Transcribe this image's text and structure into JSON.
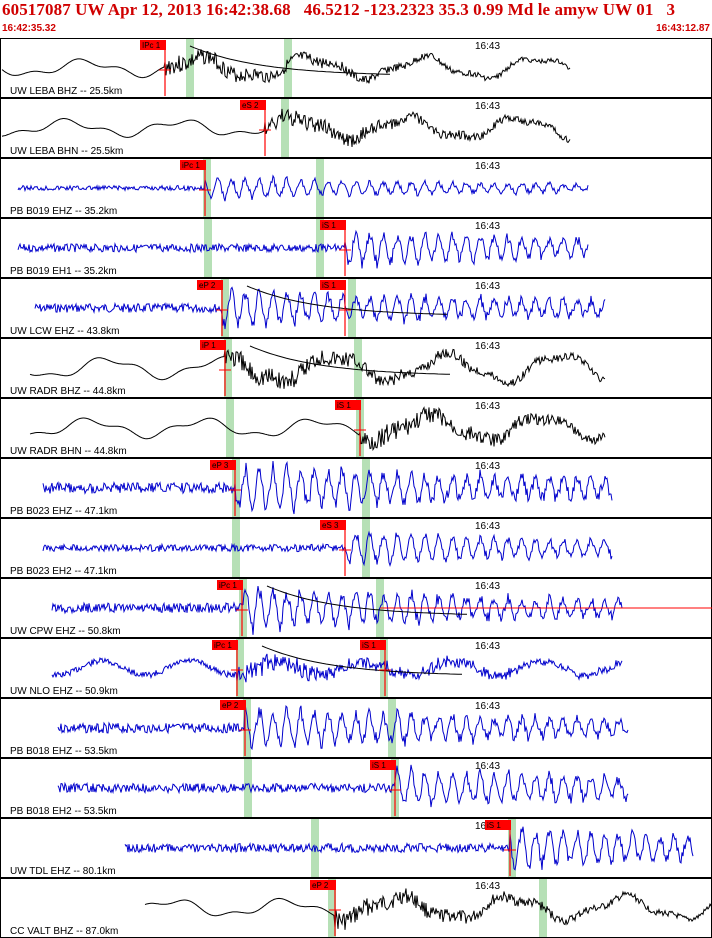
{
  "header": {
    "title": "60517087 UW Apr 12, 2013 16:42:38.68   46.5212 -123.2323 35.3 0.99 Md le amyw UW 01   3",
    "time_start": "16:42:35.32",
    "time_end": "16:43:12.87"
  },
  "colors": {
    "header_text": "#d00000",
    "trace_broadband": "#000000",
    "trace_shortperiod": "#0000cc",
    "pick_marker": "#ff0000",
    "pick_label_bg": "#ff0000",
    "predicted_band": "#b6e0b6",
    "panel_border": "#000000",
    "coda_curve": "#000000"
  },
  "minute_label": "16:43",
  "traces": [
    {
      "label": "UW LEBA BHZ -- 25.5km",
      "color": "black",
      "picks": [
        {
          "label": "IPc 1"
        }
      ]
    },
    {
      "label": "UW LEBA BHN -- 25.5km",
      "color": "black",
      "picks": [
        {
          "label": "eS 2"
        }
      ]
    },
    {
      "label": "PB B019 EHZ -- 35.2km",
      "color": "blue",
      "picks": [
        {
          "label": "iPc 1"
        }
      ]
    },
    {
      "label": "PB B019 EH1 -- 35.2km",
      "color": "blue",
      "picks": [
        {
          "label": "iS 1"
        }
      ]
    },
    {
      "label": "UW LCW EHZ -- 43.8km",
      "color": "blue",
      "picks": [
        {
          "label": "eP 2"
        },
        {
          "label": "iS 1"
        }
      ]
    },
    {
      "label": "UW RADR BHZ -- 44.8km",
      "color": "black",
      "picks": [
        {
          "label": "iP 1"
        }
      ]
    },
    {
      "label": "UW RADR BHN -- 44.8km",
      "color": "black",
      "picks": [
        {
          "label": "iS 1"
        }
      ]
    },
    {
      "label": "PB B023 EHZ -- 47.1km",
      "color": "blue",
      "picks": [
        {
          "label": "eP 3"
        }
      ]
    },
    {
      "label": "PB B023 EH2 -- 47.1km",
      "color": "blue",
      "picks": [
        {
          "label": "eS 3"
        }
      ]
    },
    {
      "label": "UW CPW EHZ -- 50.8km",
      "color": "blue",
      "picks": [
        {
          "label": "iPc 1"
        }
      ]
    },
    {
      "label": "UW NLO EHZ -- 50.9km",
      "color": "blue",
      "picks": [
        {
          "label": "iPc 1"
        },
        {
          "label": "iS 1"
        }
      ]
    },
    {
      "label": "PB B018 EHZ -- 53.5km",
      "color": "blue",
      "picks": [
        {
          "label": "eP 2"
        }
      ]
    },
    {
      "label": "PB B018 EH2 -- 53.5km",
      "color": "blue",
      "picks": [
        {
          "label": "iS 1"
        }
      ]
    },
    {
      "label": "UW TDL EHZ -- 80.1km",
      "color": "blue",
      "picks": [
        {
          "label": "iS 1"
        }
      ]
    },
    {
      "label": "CC VALT BHZ -- 87.0km",
      "color": "black",
      "picks": [
        {
          "label": "eP 2"
        }
      ]
    }
  ]
}
